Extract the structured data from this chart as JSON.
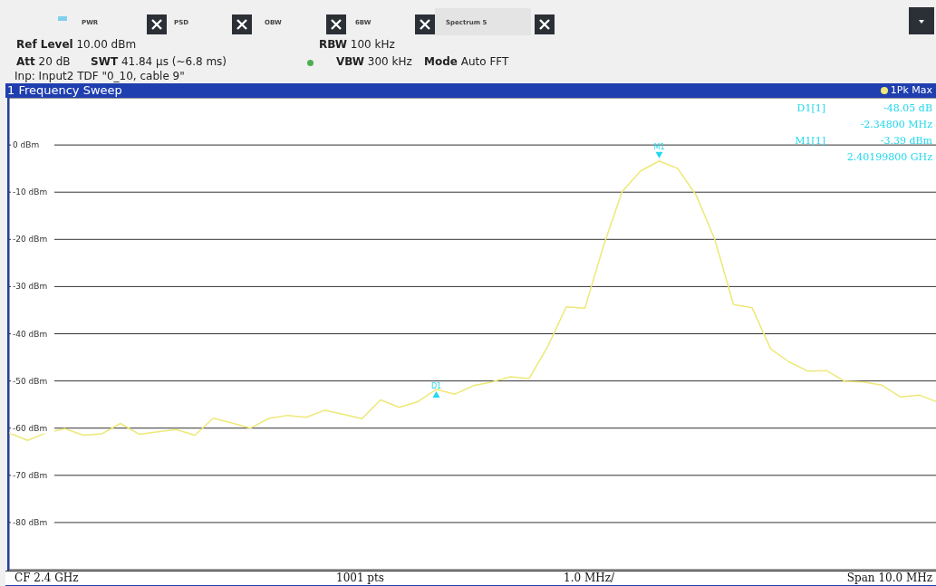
{
  "chart_data": {
    "type": "line",
    "title": "1 Frequency Sweep",
    "categories": [
      null,
      null,
      null,
      null,
      null,
      null,
      null,
      null,
      null,
      null,
      null,
      null,
      null,
      null,
      null,
      null,
      null,
      null,
      null,
      null,
      null,
      null,
      null,
      null,
      null,
      null,
      null,
      null,
      null,
      null,
      null,
      null,
      null,
      null,
      null,
      null,
      null,
      null,
      null,
      null,
      null,
      null,
      null,
      null,
      null,
      null,
      null,
      null,
      null,
      null,
      null
    ],
    "ylim": [
      -90,
      10
    ],
    "yticks": [
      {
        "value": 0,
        "label": "0 dBm"
      },
      {
        "value": -10,
        "label": "-10 dBm"
      },
      {
        "value": -20,
        "label": "-20 dBm"
      },
      {
        "value": -30,
        "label": "-30 dBm"
      },
      {
        "value": -40,
        "label": "-40 dBm"
      },
      {
        "value": -50,
        "label": "-50 dBm"
      },
      {
        "value": -60,
        "label": "-60 dBm"
      },
      {
        "value": -70,
        "label": "-70 dBm"
      },
      {
        "value": -80,
        "label": "-80 dBm"
      }
    ],
    "tick_labels": "y",
    "grid": true,
    "legend": "top right",
    "marker": "none",
    "line_style": "solid",
    "series": [
      {
        "name": "1Pk Max",
        "color": "#eee878",
        "values": [
          -61.0,
          -62.6,
          -61.0,
          -60.1,
          -61.5,
          -61.2,
          -59.0,
          -61.3,
          -60.8,
          -60.3,
          -61.5,
          -57.9,
          -58.9,
          -60.0,
          -57.9,
          -57.3,
          -57.7,
          -56.2,
          -57.1,
          -58.0,
          -54.0,
          -55.6,
          -54.4,
          -51.8,
          -52.8,
          -51.0,
          -50.2,
          -49.1,
          -49.5,
          -42.7,
          -34.3,
          -34.6,
          -21.4,
          -9.9,
          -5.5,
          -3.39,
          -5.0,
          -10.7,
          -20.1,
          -33.8,
          -34.5,
          -43.2,
          -46.0,
          -47.9,
          -47.8,
          -50.1,
          -50.2,
          -50.9,
          -53.4,
          -53.0,
          -54.5
        ]
      }
    ],
    "annotations": [
      "PWR",
      "PSD",
      "OBW",
      "6BW",
      "Spectrum 5",
      "Ref Level 10.00 dBm",
      "RBW 100 kHz",
      "Att 20 dB",
      "SWT 41.84 µs (~6.8 ms)",
      "VBW 300 kHz",
      "Mode Auto FFT",
      "Inp: Input2 TDF \"0_10, cable 9\"",
      "D1[1]",
      "-48.05 dB",
      "-2.34800 MHz",
      "M1[1]",
      "-3.39 dBm",
      "2.40199800 GHz",
      "CF 2.4 GHz",
      "1001 pts",
      "1.0 MHz/",
      "Span 10.0 MHz",
      {
        "text": "M1",
        "y": -3.39
      },
      {
        "text": "D1",
        "y": -51.44
      }
    ]
  }
}
